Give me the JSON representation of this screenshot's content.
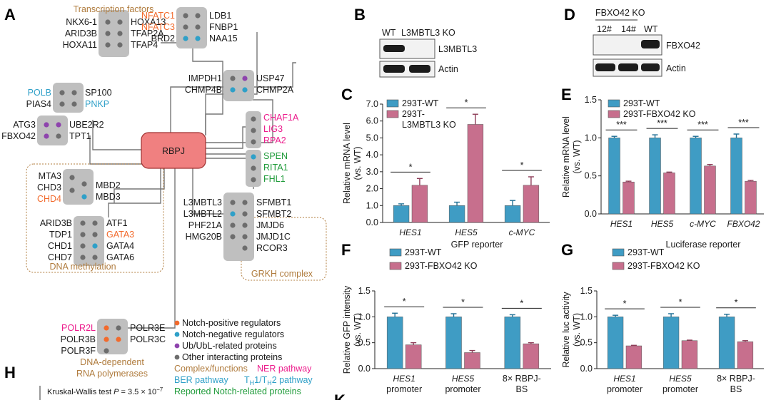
{
  "colors": {
    "blue": "#3f9cc4",
    "pink": "#c76f8d",
    "orange": "#f26a2c",
    "cyan": "#2fa0c8",
    "magenta": "#ec1c8c",
    "green": "#1f9b3a",
    "brown": "#b07c3e",
    "dotgray": "#6d6d6d",
    "boxgray": "#bfbfbf",
    "rbpj": "#f08080"
  },
  "panelA": {
    "label": "A",
    "hub": "RBPJ",
    "tf_title": "Transcription factors",
    "tf_left": [
      "NKX6-1",
      "ARID3B",
      "HOXA11"
    ],
    "tf_right": [
      "HOXA13",
      "TFAP2A",
      "TFAP4"
    ],
    "nf_left": [
      "NFATC1",
      "NFATC3",
      "BRD2"
    ],
    "nf_right": [
      "LDB1",
      "FNBP1",
      "NAA15"
    ],
    "imp_left": [
      "IMPDH1",
      "CHMP4B"
    ],
    "imp_right": [
      "USP47",
      "CHMP2A"
    ],
    "pol_left": [
      "POLB",
      "PIAS4"
    ],
    "pol_right": [
      "SP100",
      "PNKP"
    ],
    "ub_left": [
      "ATG3",
      "FBXO42"
    ],
    "ub_right": [
      "UBE2R2",
      "TPT1"
    ],
    "chaf": [
      "CHAF1A",
      "LIG3",
      "RPA2"
    ],
    "spen": [
      "SPEN",
      "RITA1",
      "FHL1"
    ],
    "mta_left": [
      "MTA3",
      "CHD3",
      "CHD4"
    ],
    "mta_right": [
      "MBD2",
      "MBD3"
    ],
    "dna_left": [
      "ARID3B",
      "TDP1",
      "CHD1",
      "CHD7"
    ],
    "dna_right": [
      "ATF1",
      "GATA3",
      "GATA4",
      "GATA6"
    ],
    "dna_label": "DNA methylation",
    "grkh_left": [
      "L3MBTL3",
      "L3MBTL2",
      "PHF21A",
      "HMG20B"
    ],
    "grkh_right": [
      "SFMBT1",
      "SFMBT2",
      "JMJD6",
      "JMJD1C",
      "RCOR3"
    ],
    "grkh_label": "GRKH complex",
    "rna_left": [
      "POLR2L",
      "POLR3B",
      "POLR3F"
    ],
    "rna_right": [
      "POLR3E",
      "POLR3C"
    ],
    "rna_label1": "DNA-dependent",
    "rna_label2": "RNA polymerases",
    "legend": [
      "Notch-positive regulators",
      "Notch-negative regulators",
      "Ub/UbL-related proteins",
      "Other interacting proteins"
    ],
    "leg_complex": "Complex/functions",
    "leg_ner": "NER pathway",
    "leg_ber": "BER pathway",
    "leg_th": "TH1/TH2 pathway",
    "leg_reported": "Reported Notch-related proteins"
  },
  "panelB": {
    "label": "B",
    "wt": "WT",
    "ko": "L3MBTL3 KO",
    "band1": "L3MBTL3",
    "band2": "Actin"
  },
  "panelD": {
    "label": "D",
    "title": "FBXO42 KO",
    "lanes": [
      "12#",
      "14#",
      "WT"
    ],
    "band1": "FBXO42",
    "band2": "Actin"
  },
  "chart_data": [
    {
      "panel": "C",
      "type": "bar",
      "ylabel": "Relative mRNA level (vs. WT)",
      "ylim": [
        0,
        7
      ],
      "ticks": [
        "0.0",
        "1.0",
        "2.0",
        "3.0",
        "4.0",
        "5.0",
        "6.0",
        "7.0"
      ],
      "categories": [
        "HES1",
        "HES5",
        "c-MYC"
      ],
      "series": [
        {
          "name": "293T-WT",
          "values": [
            1.0,
            1.0,
            1.0
          ],
          "err": [
            0.1,
            0.2,
            0.3
          ]
        },
        {
          "name": "293T-L3MBTL3 KO",
          "values": [
            2.2,
            5.8,
            2.2
          ],
          "err": [
            0.4,
            0.6,
            0.5
          ]
        }
      ],
      "legend": [
        "293T-WT",
        "293T-",
        "L3MBTL3 KO"
      ],
      "signif": [
        "*",
        "*",
        "*"
      ],
      "xlabels2": [
        "",
        "",
        ""
      ]
    },
    {
      "panel": "E",
      "type": "bar",
      "ylabel": "Relative mRNA level (vs. WT)",
      "ylim": [
        0,
        1.5
      ],
      "ticks": [
        "0.0",
        "0.5",
        "1.0",
        "1.5"
      ],
      "categories": [
        "HES1",
        "HES5",
        "c-MYC",
        "FBXO42"
      ],
      "series": [
        {
          "name": "293T-WT",
          "values": [
            1.0,
            1.0,
            1.0,
            1.0
          ],
          "err": [
            0.02,
            0.04,
            0.02,
            0.05
          ]
        },
        {
          "name": "293T-FBXO42 KO",
          "values": [
            0.42,
            0.54,
            0.63,
            0.43
          ],
          "err": [
            0.01,
            0.01,
            0.02,
            0.01
          ]
        }
      ],
      "legend": [
        "293T-WT",
        "293T-FBXO42 KO"
      ],
      "signif": [
        "***",
        "***",
        "***",
        "***"
      ],
      "xlabels2": [
        "",
        "",
        "",
        ""
      ]
    },
    {
      "panel": "F",
      "type": "bar",
      "title": "GFP reporter",
      "ylabel": "Relative GFP intensity (vs. WT)",
      "ylim": [
        0,
        1.5
      ],
      "ticks": [
        "0.0",
        "0.5",
        "1.0",
        "1.5"
      ],
      "categories": [
        "HES1",
        "HES5",
        "8× RBPJ-"
      ],
      "series": [
        {
          "name": "293T-WT",
          "values": [
            1.0,
            1.0,
            1.0
          ],
          "err": [
            0.07,
            0.06,
            0.04
          ]
        },
        {
          "name": "293T-FBXO42 KO",
          "values": [
            0.46,
            0.31,
            0.48
          ],
          "err": [
            0.04,
            0.04,
            0.02
          ]
        }
      ],
      "legend": [
        "293T-WT",
        "293T-FBXO42 KO"
      ],
      "signif": [
        "*",
        "*",
        "*"
      ],
      "xlabels2": [
        "promoter",
        "promoter",
        "BS"
      ]
    },
    {
      "panel": "G",
      "type": "bar",
      "title": "Luciferase reporter",
      "ylabel": "Relative luc activity (vs. WT)",
      "ylim": [
        0,
        1.5
      ],
      "ticks": [
        "0.0",
        "0.5",
        "1.0",
        "1.5"
      ],
      "categories": [
        "HES1",
        "HES5",
        "8× RBPJ-"
      ],
      "series": [
        {
          "name": "293T-WT",
          "values": [
            1.0,
            1.0,
            1.0
          ],
          "err": [
            0.03,
            0.06,
            0.05
          ]
        },
        {
          "name": "293T-FBXO42 KO",
          "values": [
            0.44,
            0.54,
            0.52
          ],
          "err": [
            0.01,
            0.01,
            0.02
          ]
        }
      ],
      "legend": [
        "293T-WT",
        "293T-FBXO42 KO"
      ],
      "signif": [
        "*",
        "*",
        "*"
      ],
      "xlabels2": [
        "promoter",
        "promoter",
        "BS"
      ]
    }
  ],
  "panelLabels": {
    "C": "C",
    "E": "E",
    "F": "F",
    "G": "G",
    "H": "H",
    "K": "K"
  },
  "panelH": {
    "test": "Kruskal-Wallis test",
    "p_label": "P",
    "p_value": "= 3.5 × 10",
    "p_exp": "−7"
  }
}
